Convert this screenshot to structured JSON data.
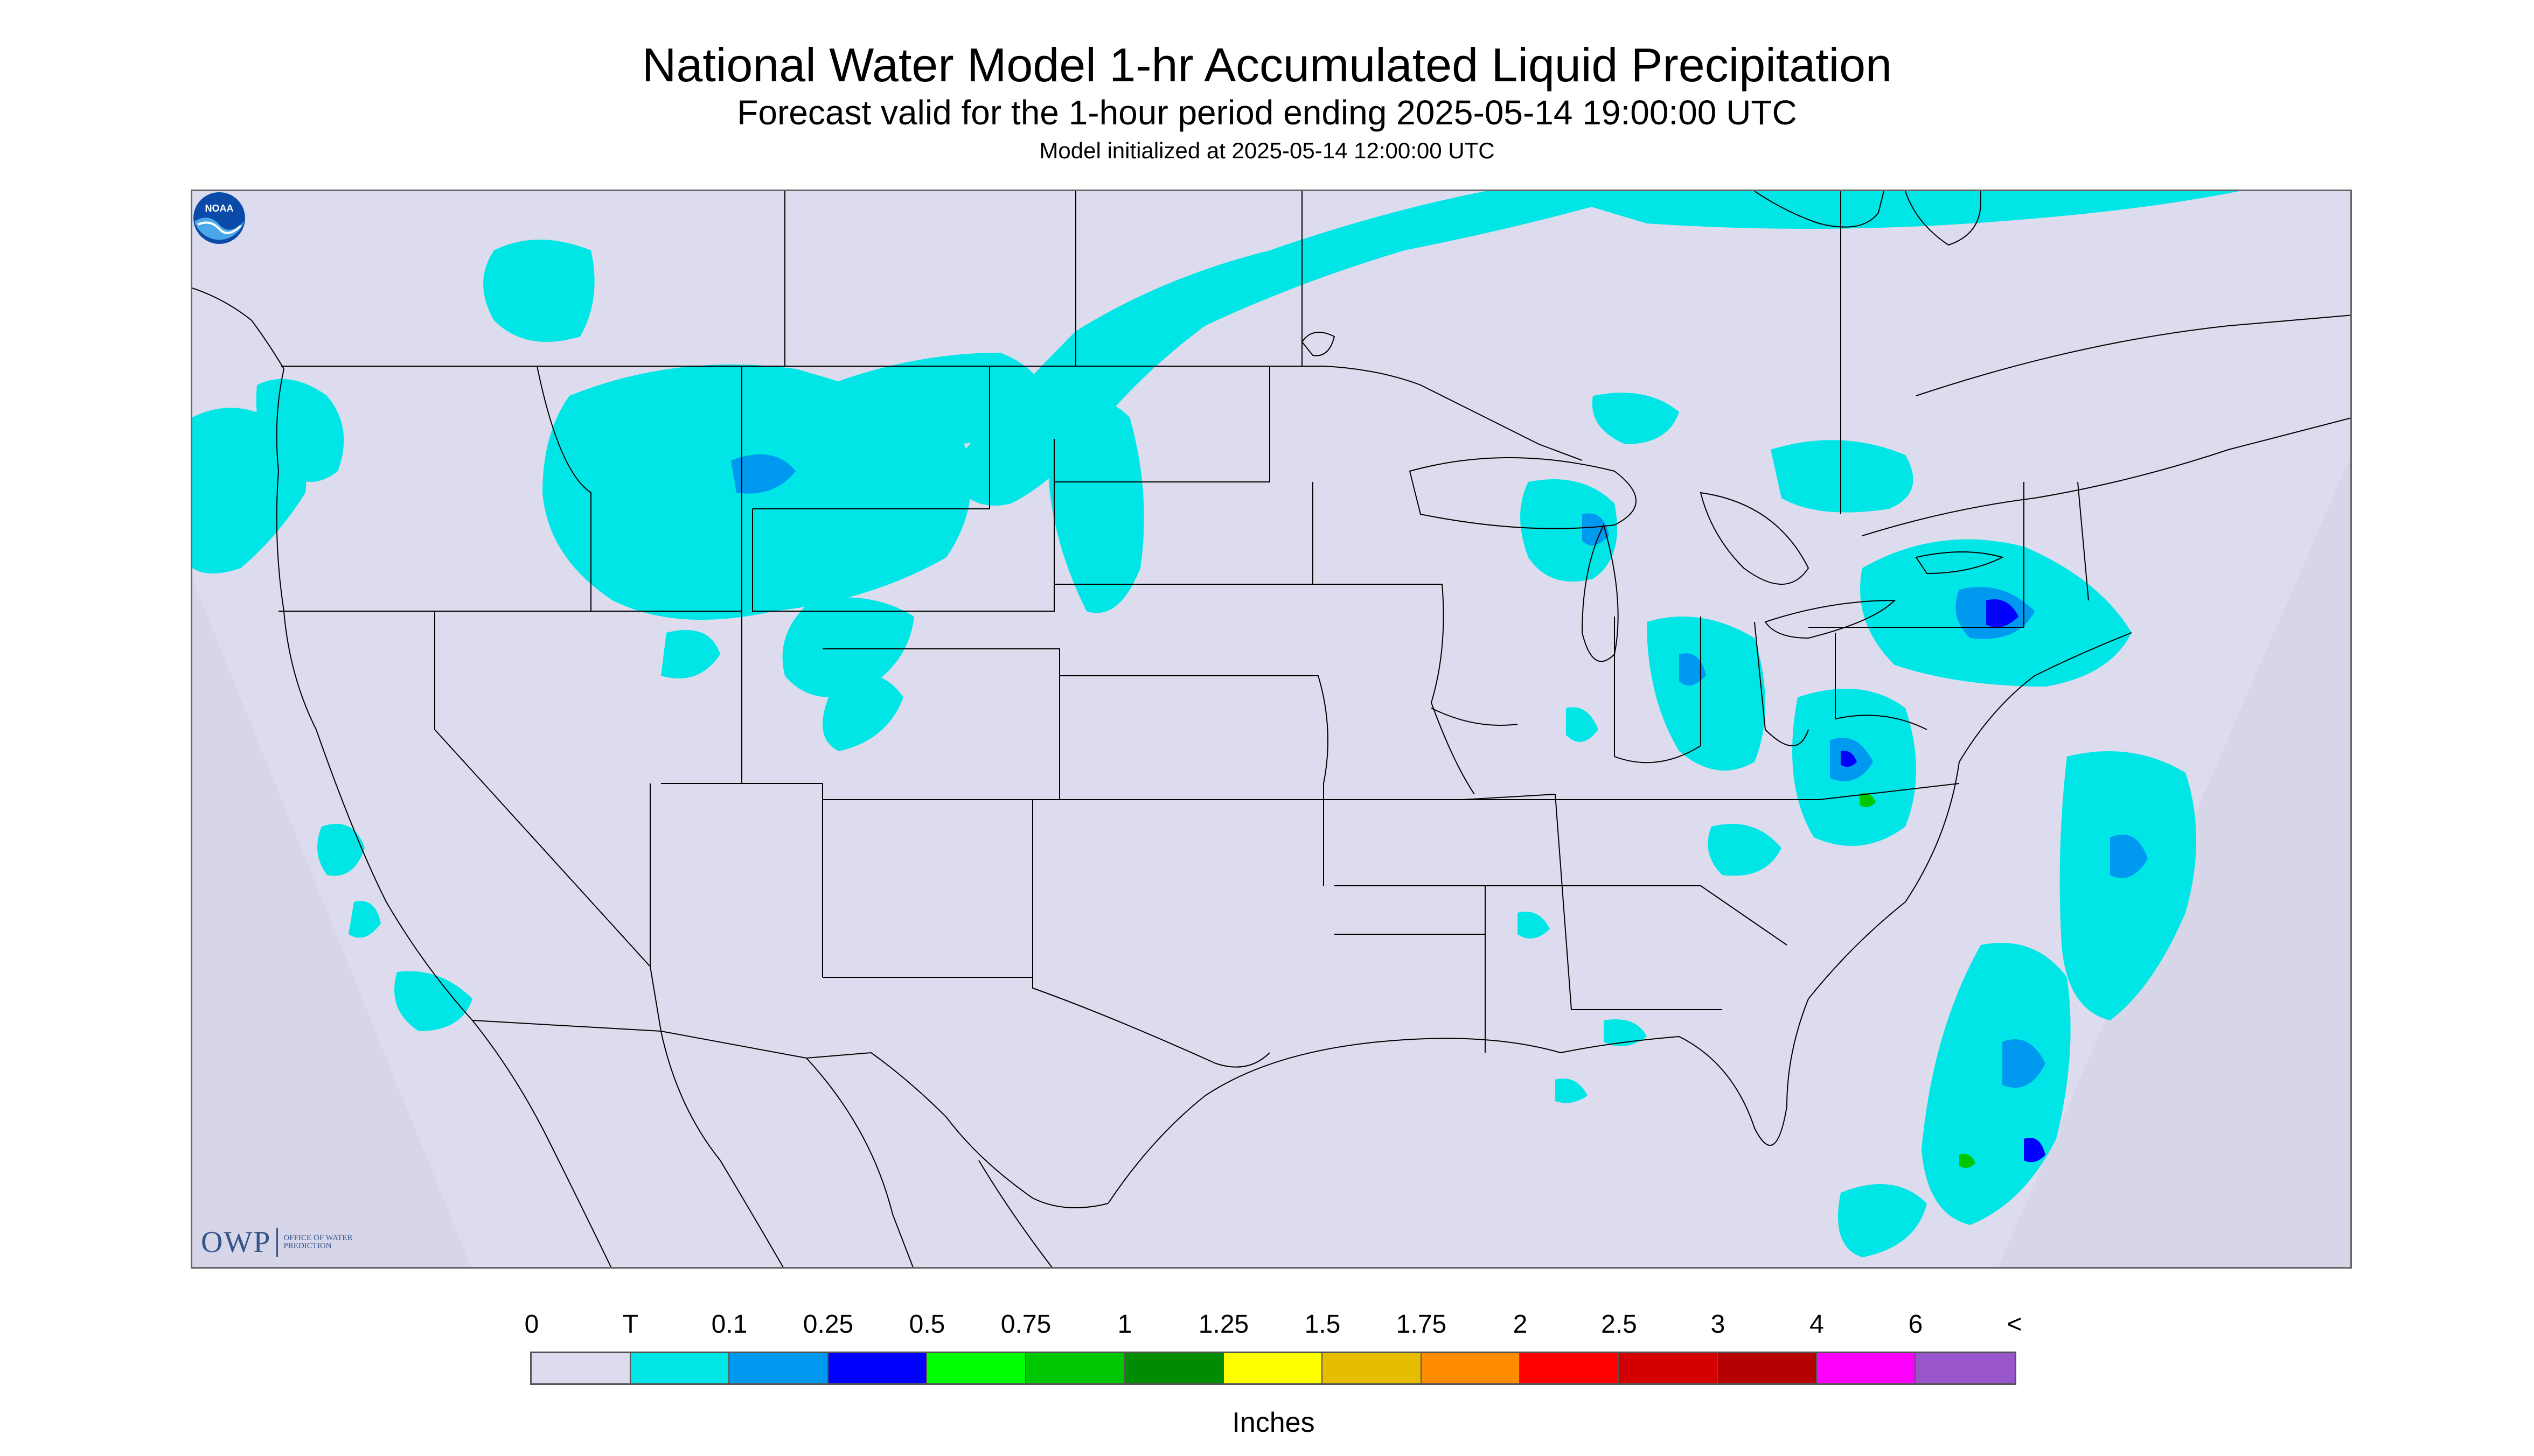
{
  "header": {
    "title": "National Water Model 1-hr Accumulated Liquid Precipitation",
    "subtitle": "Forecast valid for the 1-hour period ending 2025-05-14 19:00:00 UTC",
    "init": "Model initialized at 2025-05-14 12:00:00 UTC"
  },
  "map": {
    "background_color": "#dcdcee",
    "outside_color": "#d9d9ea",
    "boundary_color": "#000000",
    "precip_colors": {
      "trace": "#00e6e6",
      "light": "#0099f0",
      "moderate": "#0000ff",
      "heavy": "#00c800"
    }
  },
  "logos": {
    "owp": {
      "letters": "OWP",
      "sub": "OFFICE OF WATER PREDICTION"
    },
    "noaa": {
      "icon": "noaa-logo-icon",
      "text": "NOAA"
    }
  },
  "legend": {
    "labels": [
      "0",
      "T",
      "0.1",
      "0.25",
      "0.5",
      "0.75",
      "1",
      "1.25",
      "1.5",
      "1.75",
      "2",
      "2.5",
      "3",
      "4",
      "6",
      "<"
    ],
    "colors": [
      "#dcdcee",
      "#00e6e6",
      "#0099f0",
      "#0000ff",
      "#00ff00",
      "#00c800",
      "#008c00",
      "#ffff00",
      "#e6be00",
      "#ff8c00",
      "#ff0000",
      "#d20000",
      "#b40000",
      "#ff00ff",
      "#9955cc"
    ],
    "unit": "Inches"
  }
}
